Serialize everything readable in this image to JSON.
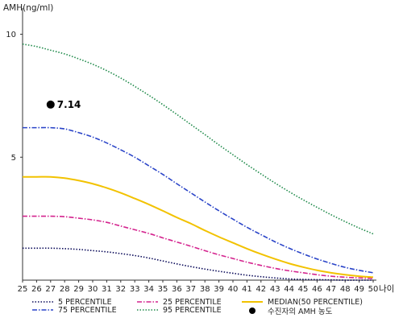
{
  "chart_data": {
    "type": "line",
    "ylabel": "AMH(ng/ml)",
    "xlabel": "나이",
    "x": [
      25,
      26,
      27,
      28,
      29,
      30,
      31,
      32,
      33,
      34,
      35,
      36,
      37,
      38,
      39,
      40,
      41,
      42,
      43,
      44,
      45,
      46,
      47,
      48,
      49,
      50
    ],
    "xlim": [
      25,
      50
    ],
    "ylim": [
      0,
      11
    ],
    "yticks": [
      5,
      10
    ],
    "grid": false,
    "legend_position": "bottom",
    "series": [
      {
        "name": "5 PERCENTILE",
        "color": "#0b0b5a",
        "style": "dotted",
        "values": [
          1.3,
          1.3,
          1.3,
          1.28,
          1.25,
          1.2,
          1.15,
          1.08,
          1.0,
          0.9,
          0.78,
          0.66,
          0.55,
          0.45,
          0.36,
          0.28,
          0.2,
          0.14,
          0.09,
          0.05,
          0.03,
          0.02,
          0.01,
          0.0,
          0.0,
          0.0
        ]
      },
      {
        "name": "25 PERCENTILE",
        "color": "#d4238e",
        "style": "dashdot",
        "values": [
          2.6,
          2.6,
          2.6,
          2.58,
          2.52,
          2.45,
          2.35,
          2.2,
          2.05,
          1.9,
          1.72,
          1.55,
          1.38,
          1.2,
          1.03,
          0.88,
          0.73,
          0.6,
          0.48,
          0.38,
          0.3,
          0.22,
          0.16,
          0.12,
          0.09,
          0.07
        ]
      },
      {
        "name": "MEDIAN(50 PERCENTILE)",
        "color": "#f2c200",
        "style": "solid",
        "values": [
          4.2,
          4.2,
          4.2,
          4.15,
          4.05,
          3.92,
          3.75,
          3.55,
          3.32,
          3.08,
          2.82,
          2.55,
          2.3,
          2.02,
          1.76,
          1.52,
          1.28,
          1.06,
          0.86,
          0.68,
          0.53,
          0.4,
          0.3,
          0.22,
          0.16,
          0.12
        ]
      },
      {
        "name": "75 PERCENTILE",
        "color": "#2a44c8",
        "style": "dashdot",
        "values": [
          6.2,
          6.2,
          6.2,
          6.15,
          6.0,
          5.82,
          5.58,
          5.3,
          5.0,
          4.65,
          4.3,
          3.92,
          3.55,
          3.18,
          2.82,
          2.48,
          2.15,
          1.85,
          1.56,
          1.3,
          1.07,
          0.86,
          0.68,
          0.52,
          0.4,
          0.3
        ]
      },
      {
        "name": "95 PERCENTILE",
        "color": "#1f8a4a",
        "style": "dotted",
        "values": [
          9.6,
          9.5,
          9.35,
          9.2,
          9.0,
          8.78,
          8.52,
          8.22,
          7.88,
          7.52,
          7.14,
          6.74,
          6.33,
          5.92,
          5.5,
          5.1,
          4.7,
          4.32,
          3.95,
          3.6,
          3.27,
          2.96,
          2.66,
          2.38,
          2.12,
          1.88
        ]
      }
    ],
    "highlight_point": {
      "name": "수진자의 AMH 농도",
      "x": 27,
      "y": 7.14,
      "label": "7.14",
      "color": "#000000"
    }
  }
}
